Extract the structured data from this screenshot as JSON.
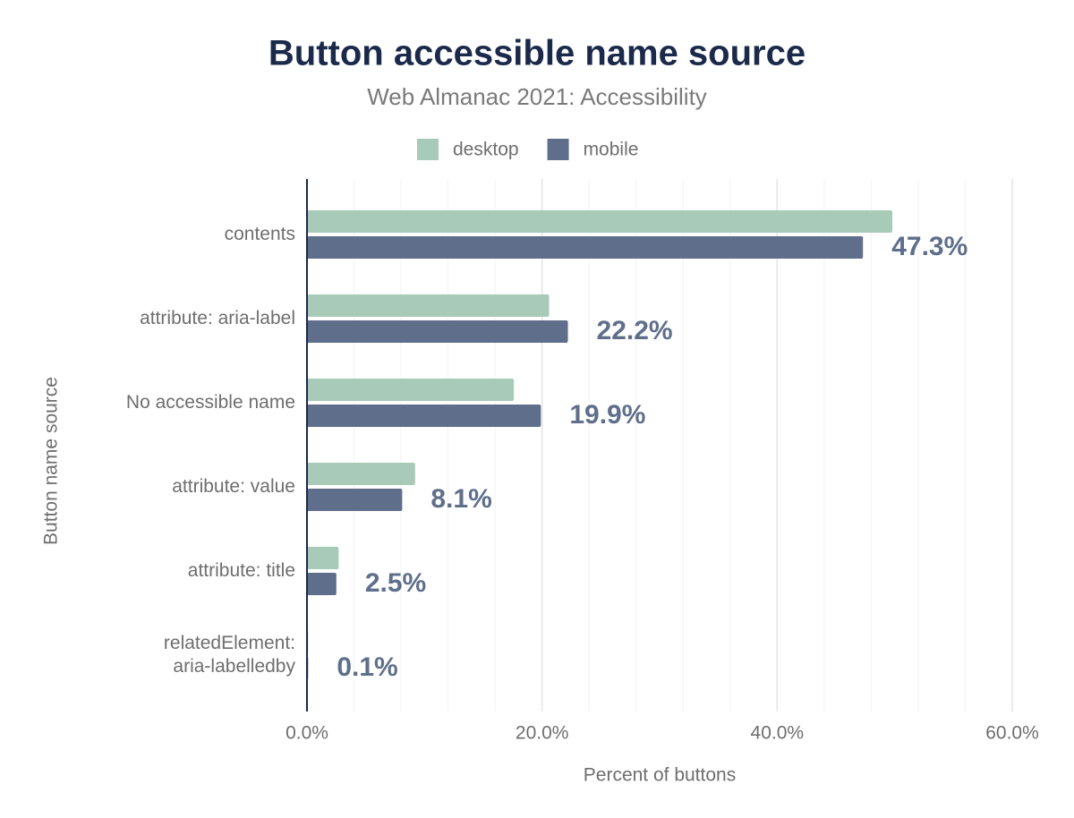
{
  "chart_data": {
    "type": "bar",
    "orientation": "horizontal",
    "title": "Button accessible name source",
    "subtitle": "Web Almanac 2021: Accessibility",
    "x_label": "Percent of buttons",
    "y_label": "Button name source",
    "categories": [
      "contents",
      "attribute: aria-label",
      "No accessible name",
      "attribute: value",
      "attribute: title",
      "relatedElement:\naria-labelledby"
    ],
    "series": [
      {
        "name": "desktop",
        "color": "#a8cbb9",
        "values": [
          49.8,
          20.6,
          17.6,
          9.2,
          2.7,
          0.1
        ]
      },
      {
        "name": "mobile",
        "color": "#5f6f8b",
        "values": [
          47.3,
          22.2,
          19.9,
          8.1,
          2.5,
          0.1
        ],
        "value_labels": [
          "47.3%",
          "22.2%",
          "19.9%",
          "8.1%",
          "2.5%",
          "0.1%"
        ]
      }
    ],
    "xlim": [
      0,
      60
    ],
    "xticks": [
      {
        "value": 0,
        "label": "0.0%"
      },
      {
        "value": 20,
        "label": "20.0%"
      },
      {
        "value": 40,
        "label": "40.0%"
      },
      {
        "value": 60,
        "label": "60.0%"
      }
    ],
    "x_minor_grid": [
      4,
      8,
      12,
      16,
      24,
      28,
      32,
      36,
      44,
      48,
      52,
      56
    ],
    "grid": true,
    "legend": "top"
  }
}
